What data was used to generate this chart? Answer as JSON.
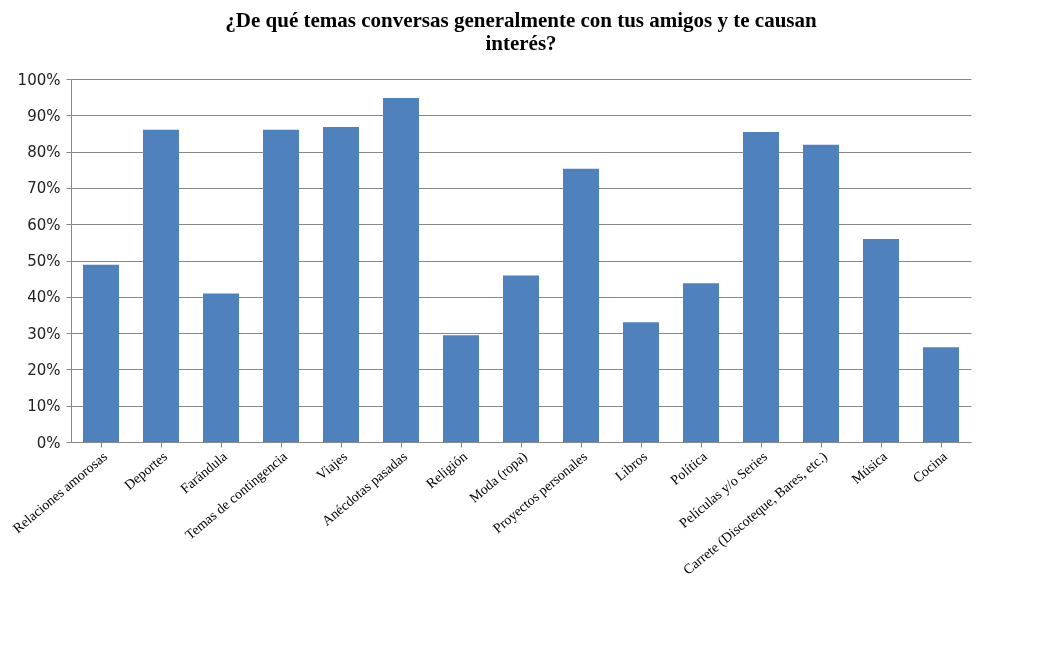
{
  "chart_data": {
    "type": "bar",
    "title": "¿De qué temas conversas generalmente con tus amigos y te causan interés?",
    "categories": [
      "Relaciones amorosas",
      "Deportes",
      "Farándula",
      "Temas de contingencia",
      "Viajes",
      "Anécdotas pasadas",
      "Religión",
      "Moda (ropa)",
      "Proyectos personales",
      "Libros",
      "Política",
      "Películas y/o Series",
      "Carrete (Discoteque, Bares, etc.)",
      "Música",
      "Cocina"
    ],
    "values": [
      48.8,
      86.0,
      40.9,
      86.0,
      86.8,
      94.8,
      29.4,
      45.9,
      75.3,
      33.0,
      43.7,
      85.4,
      81.9,
      55.9,
      26.1
    ],
    "color": "#4f81bd",
    "ylim": [
      0,
      100
    ],
    "yticks": [
      {
        "value": 0,
        "label": "0%"
      },
      {
        "value": 10,
        "label": "10%"
      },
      {
        "value": 20,
        "label": "20%"
      },
      {
        "value": 30,
        "label": "30%"
      },
      {
        "value": 40,
        "label": "40%"
      },
      {
        "value": 50,
        "label": "50%"
      },
      {
        "value": 60,
        "label": "60%"
      },
      {
        "value": 70,
        "label": "70%"
      },
      {
        "value": 80,
        "label": "80%"
      },
      {
        "value": 90,
        "label": "90%"
      },
      {
        "value": 100,
        "label": "100%"
      }
    ],
    "grid": "y"
  }
}
